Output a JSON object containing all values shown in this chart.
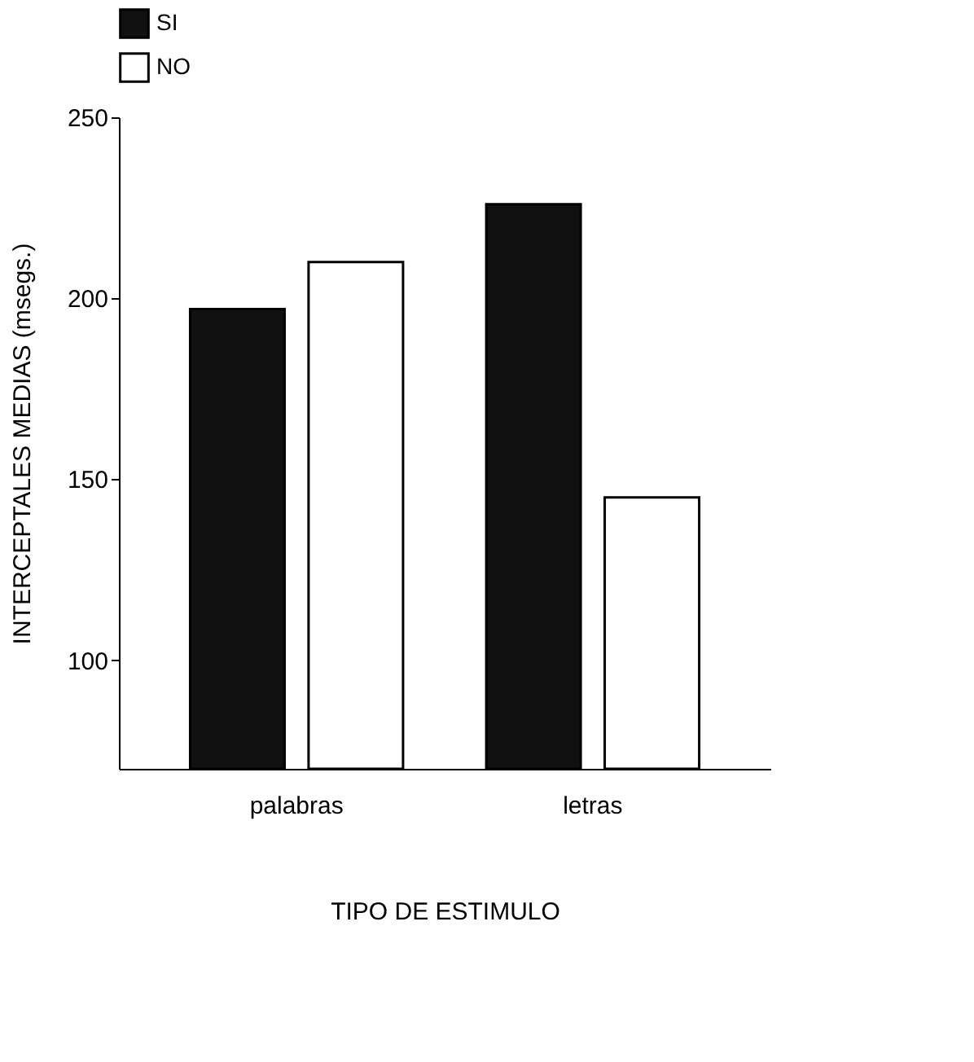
{
  "chart_data": {
    "type": "bar",
    "xlabel": "TIPO DE ESTIMULO",
    "ylabel": "INTERCEPTALES   MEDIAS (msegs.)",
    "categories": [
      "palabras",
      "letras"
    ],
    "series": [
      {
        "name": "SI",
        "color": "#111111",
        "values": [
          197,
          226
        ]
      },
      {
        "name": "NO",
        "color": "#ffffff",
        "values": [
          210,
          145
        ]
      }
    ],
    "ylim": [
      70,
      250
    ],
    "yticks": [
      100,
      150,
      200,
      250
    ],
    "grid": false,
    "legend": "top"
  }
}
